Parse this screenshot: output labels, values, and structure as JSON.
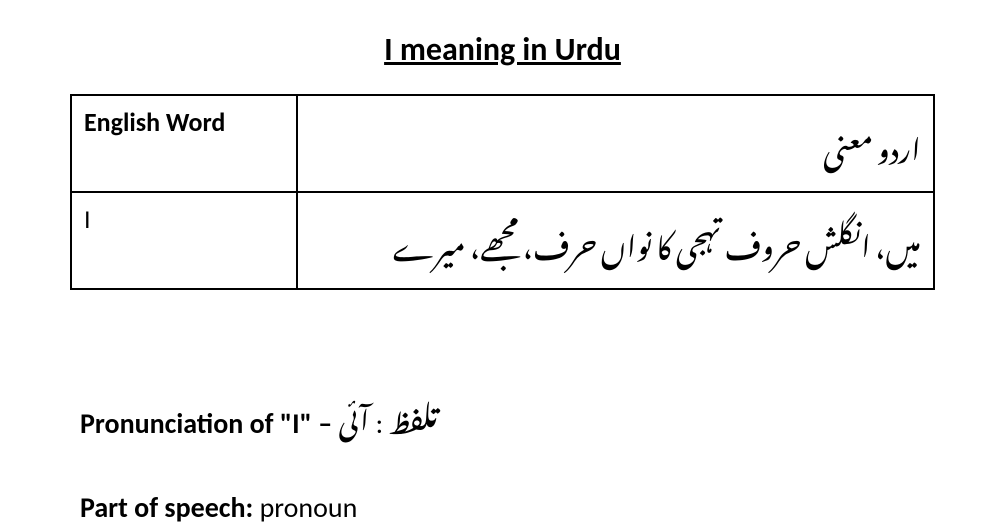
{
  "title": "I meaning in Urdu",
  "table": {
    "header": {
      "english": "English Word",
      "urdu": "اردو معنی"
    },
    "row": {
      "english": "I",
      "urdu": "میں، انگلش حروف تہجی کا نواں حرف، مجھے، میرے"
    }
  },
  "pronunciation": {
    "label_prefix": "Pronunciation of \"I\" – ",
    "urdu_label": "تلفظ",
    "separator": " : ",
    "value": "آئی"
  },
  "partOfSpeech": {
    "label": "Part of speech:",
    "value": "  pronoun"
  },
  "styling": {
    "background_color": "#ffffff",
    "text_color": "#000000",
    "border_color": "#000000",
    "title_fontsize": 32,
    "table_fontsize": 26,
    "urdu_fontsize": 30,
    "info_fontsize": 28
  }
}
